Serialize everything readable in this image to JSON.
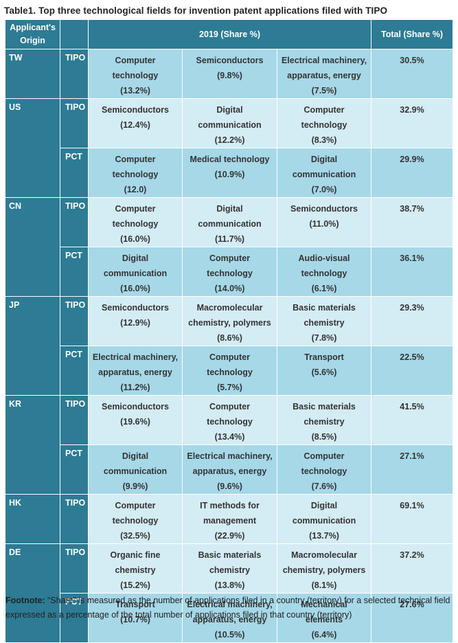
{
  "title": "Table1. Top three technological fields for invention patent applications filed with TIPO",
  "header": {
    "origin_line1": "Applicant's",
    "origin_line2": "Origin",
    "year_share": "2019 (Share %)",
    "total": "Total (Share %)"
  },
  "rows": [
    {
      "origin": "TW",
      "type": "TIPO",
      "style": "dark",
      "c1": [
        "Computer",
        "technology",
        "(13.2%)"
      ],
      "c2": [
        "Semiconductors",
        "(9.8%)"
      ],
      "c3": [
        "Electrical machinery,",
        "apparatus, energy",
        "(7.5%)"
      ],
      "total": "30.5%"
    },
    {
      "origin": "US",
      "type": "TIPO",
      "style": "light",
      "c1": [
        "Semiconductors",
        "(12.4%)"
      ],
      "c2": [
        "Digital",
        "communication",
        "(12.2%)"
      ],
      "c3": [
        "Computer",
        "technology",
        "(8.3%)"
      ],
      "total": "32.9%"
    },
    {
      "origin": "",
      "type": "PCT",
      "style": "dark",
      "c1": [
        "Computer",
        "technology",
        "(12.0)"
      ],
      "c2": [
        "Medical technology",
        "(10.9%)"
      ],
      "c3": [
        "Digital",
        "communication",
        "(7.0%)"
      ],
      "total": "29.9%"
    },
    {
      "origin": "CN",
      "type": "TIPO",
      "style": "light",
      "c1": [
        "Computer",
        "technology",
        "(16.0%)"
      ],
      "c2": [
        "Digital",
        "communication",
        "(11.7%)"
      ],
      "c3": [
        "Semiconductors",
        "(11.0%)"
      ],
      "total": "38.7%"
    },
    {
      "origin": "",
      "type": "PCT",
      "style": "dark",
      "c1": [
        "Digital",
        "communication",
        "(16.0%)"
      ],
      "c2": [
        "Computer",
        "technology",
        "(14.0%)"
      ],
      "c3": [
        "Audio-visual",
        "technology",
        "(6.1%)"
      ],
      "total": "36.1%"
    },
    {
      "origin": "JP",
      "type": "TIPO",
      "style": "light",
      "c1": [
        "Semiconductors",
        "(12.9%)"
      ],
      "c2": [
        "Macromolecular",
        "chemistry, polymers",
        "(8.6%)"
      ],
      "c3": [
        "Basic materials",
        "chemistry",
        "(7.8%)"
      ],
      "total": "29.3%"
    },
    {
      "origin": "",
      "type": "PCT",
      "style": "dark",
      "c1": [
        "Electrical machinery,",
        "apparatus, energy",
        "(11.2%)"
      ],
      "c2": [
        "Computer",
        "technology",
        "(5.7%)"
      ],
      "c3": [
        "Transport",
        "(5.6%)"
      ],
      "total": "22.5%"
    },
    {
      "origin": "KR",
      "type": "TIPO",
      "style": "light",
      "c1": [
        "Semiconductors",
        "(19.6%)"
      ],
      "c2": [
        "Computer",
        "technology",
        "(13.4%)"
      ],
      "c3": [
        "Basic materials",
        "chemistry",
        "(8.5%)"
      ],
      "total": "41.5%"
    },
    {
      "origin": "",
      "type": "PCT",
      "style": "dark",
      "c1": [
        "Digital",
        "communication",
        "(9.9%)"
      ],
      "c2": [
        "Electrical machinery,",
        "apparatus, energy",
        "(9.6%)"
      ],
      "c3": [
        "Computer",
        "technology",
        "(7.6%)"
      ],
      "total": "27.1%"
    },
    {
      "origin": "HK",
      "type": "TIPO",
      "style": "light",
      "c1": [
        "Computer",
        "technology",
        "(32.5%)"
      ],
      "c2": [
        "IT methods for",
        "management",
        "(22.9%)"
      ],
      "c3": [
        "Digital",
        "communication",
        "(13.7%)"
      ],
      "total": "69.1%"
    },
    {
      "origin": "DE",
      "type": "TIPO",
      "style": "light",
      "c1": [
        "Organic fine",
        "chemistry",
        "(15.2%)"
      ],
      "c2": [
        "Basic materials",
        "chemistry",
        "(13.8%)"
      ],
      "c3": [
        "Macromolecular",
        "chemistry, polymers",
        "(8.1%)"
      ],
      "total": "37.2%"
    },
    {
      "origin": "",
      "type": "PCT",
      "style": "dark",
      "c1": [
        "Transport",
        "(10.7%)"
      ],
      "c2": [
        "Electrical machinery,",
        "apparatus, energy",
        "(10.5%)"
      ],
      "c3": [
        "Mechanical",
        "elements",
        "(6.4%)"
      ],
      "total": "27.6%"
    }
  ],
  "footnote": {
    "label": "Footnote:",
    "text": " “Share” is measured as the number of applications filed in a country (territory) for a selected technical field expressed as a percentage of the total number of applications filed in that country (territory)"
  }
}
